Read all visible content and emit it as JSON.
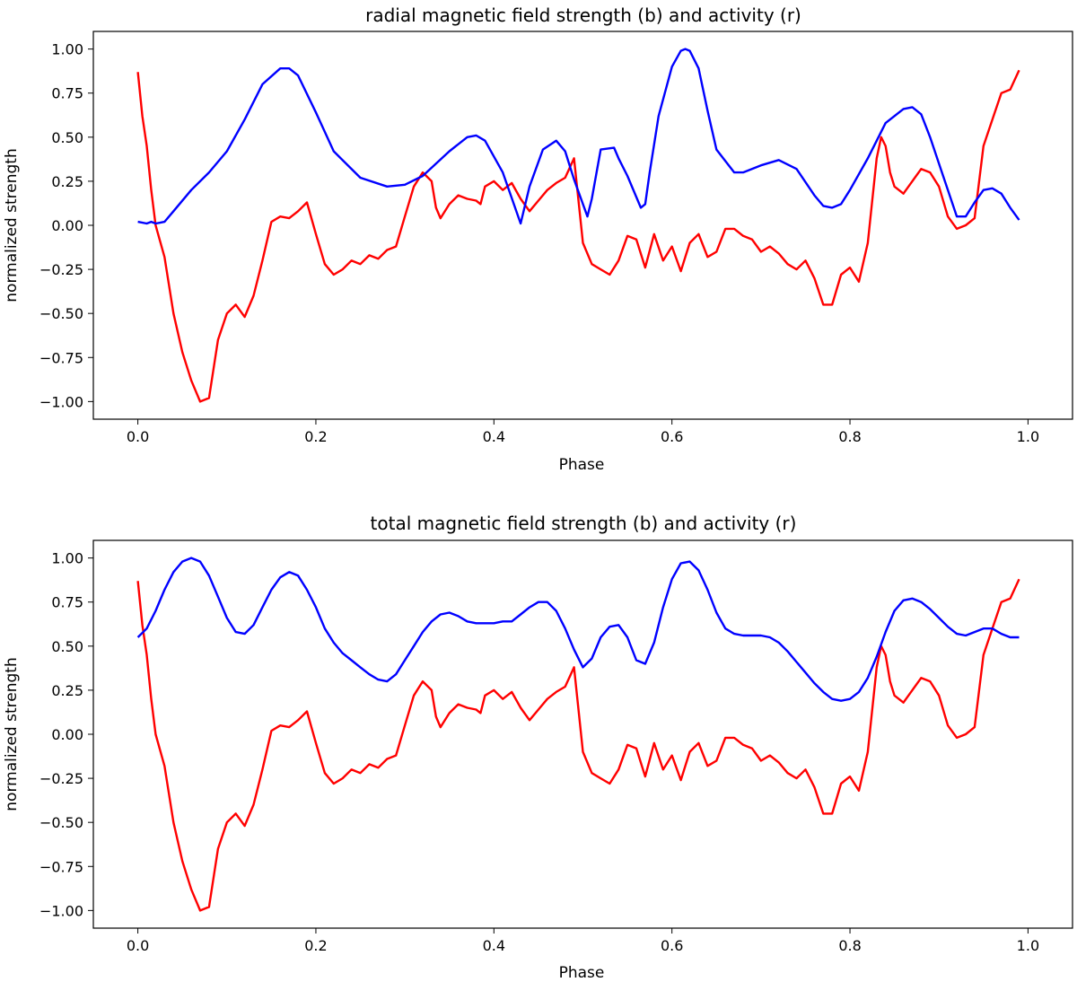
{
  "colors": {
    "magnetic": "#0000ff",
    "activity": "#ff0000",
    "axes": "#000000"
  },
  "chart_data": [
    {
      "type": "line",
      "title": "radial magnetic field strength (b) and activity (r)",
      "xlabel": "Phase",
      "ylabel": "normalized strength",
      "xlim": [
        -0.05,
        1.05
      ],
      "ylim": [
        -1.1,
        1.1
      ],
      "xticks": [
        0.0,
        0.2,
        0.4,
        0.6,
        0.8,
        1.0
      ],
      "xtick_labels": [
        "0.0",
        "0.2",
        "0.4",
        "0.6",
        "0.8",
        "1.0"
      ],
      "yticks": [
        1.0,
        0.75,
        0.5,
        0.25,
        0.0,
        -0.25,
        -0.5,
        -0.75,
        -1.0
      ],
      "ytick_labels": [
        "1.00",
        "0.75",
        "0.50",
        "0.25",
        "0.00",
        "−0.25",
        "−0.50",
        "−0.75",
        "−1.00"
      ],
      "series": [
        {
          "name": "magnetic field (b)",
          "color": "#0000ff",
          "x": [
            0.0,
            0.01,
            0.015,
            0.02,
            0.025,
            0.03,
            0.04,
            0.06,
            0.08,
            0.1,
            0.12,
            0.14,
            0.16,
            0.17,
            0.18,
            0.2,
            0.22,
            0.25,
            0.28,
            0.3,
            0.32,
            0.35,
            0.37,
            0.38,
            0.39,
            0.41,
            0.43,
            0.44,
            0.455,
            0.47,
            0.48,
            0.49,
            0.505,
            0.51,
            0.52,
            0.535,
            0.54,
            0.55,
            0.565,
            0.57,
            0.575,
            0.585,
            0.6,
            0.61,
            0.615,
            0.62,
            0.63,
            0.64,
            0.65,
            0.67,
            0.68,
            0.7,
            0.72,
            0.74,
            0.76,
            0.77,
            0.78,
            0.79,
            0.8,
            0.82,
            0.84,
            0.86,
            0.87,
            0.88,
            0.89,
            0.9,
            0.92,
            0.93,
            0.94,
            0.95,
            0.96,
            0.97,
            0.98,
            0.99
          ],
          "y": [
            0.02,
            0.01,
            0.02,
            0.01,
            0.015,
            0.02,
            0.08,
            0.2,
            0.3,
            0.42,
            0.6,
            0.8,
            0.89,
            0.89,
            0.85,
            0.64,
            0.42,
            0.27,
            0.22,
            0.23,
            0.28,
            0.42,
            0.5,
            0.51,
            0.48,
            0.3,
            0.01,
            0.22,
            0.43,
            0.48,
            0.42,
            0.26,
            0.05,
            0.15,
            0.43,
            0.44,
            0.38,
            0.28,
            0.1,
            0.12,
            0.3,
            0.62,
            0.9,
            0.99,
            1.0,
            0.99,
            0.89,
            0.65,
            0.43,
            0.3,
            0.3,
            0.34,
            0.37,
            0.32,
            0.17,
            0.11,
            0.1,
            0.12,
            0.2,
            0.38,
            0.58,
            0.66,
            0.67,
            0.63,
            0.5,
            0.35,
            0.05,
            0.05,
            0.13,
            0.2,
            0.21,
            0.18,
            0.1,
            0.03
          ]
        },
        {
          "name": "activity (r)",
          "color": "#ff0000",
          "x": [
            0.0,
            0.005,
            0.01,
            0.015,
            0.02,
            0.03,
            0.04,
            0.05,
            0.06,
            0.07,
            0.08,
            0.09,
            0.1,
            0.11,
            0.12,
            0.13,
            0.14,
            0.15,
            0.16,
            0.17,
            0.18,
            0.19,
            0.2,
            0.21,
            0.22,
            0.23,
            0.24,
            0.25,
            0.26,
            0.27,
            0.28,
            0.29,
            0.3,
            0.31,
            0.32,
            0.33,
            0.335,
            0.34,
            0.35,
            0.36,
            0.37,
            0.38,
            0.385,
            0.39,
            0.4,
            0.41,
            0.42,
            0.43,
            0.44,
            0.45,
            0.46,
            0.47,
            0.48,
            0.49,
            0.5,
            0.51,
            0.52,
            0.53,
            0.54,
            0.55,
            0.56,
            0.57,
            0.58,
            0.59,
            0.6,
            0.61,
            0.62,
            0.63,
            0.64,
            0.65,
            0.66,
            0.67,
            0.68,
            0.69,
            0.7,
            0.71,
            0.72,
            0.73,
            0.74,
            0.75,
            0.76,
            0.77,
            0.78,
            0.79,
            0.8,
            0.81,
            0.82,
            0.83,
            0.835,
            0.84,
            0.845,
            0.85,
            0.86,
            0.87,
            0.88,
            0.89,
            0.9,
            0.91,
            0.92,
            0.93,
            0.94,
            0.95,
            0.96,
            0.97,
            0.98,
            0.99
          ],
          "y": [
            0.87,
            0.62,
            0.45,
            0.2,
            0.0,
            -0.18,
            -0.5,
            -0.72,
            -0.88,
            -1.0,
            -0.98,
            -0.65,
            -0.5,
            -0.45,
            -0.52,
            -0.4,
            -0.2,
            0.02,
            0.05,
            0.04,
            0.08,
            0.13,
            -0.05,
            -0.22,
            -0.28,
            -0.25,
            -0.2,
            -0.22,
            -0.17,
            -0.19,
            -0.14,
            -0.12,
            0.05,
            0.22,
            0.3,
            0.25,
            0.1,
            0.04,
            0.12,
            0.17,
            0.15,
            0.14,
            0.12,
            0.22,
            0.25,
            0.2,
            0.24,
            0.15,
            0.08,
            0.14,
            0.2,
            0.24,
            0.27,
            0.38,
            -0.1,
            -0.22,
            -0.25,
            -0.28,
            -0.2,
            -0.06,
            -0.08,
            -0.24,
            -0.05,
            -0.2,
            -0.12,
            -0.26,
            -0.1,
            -0.05,
            -0.18,
            -0.15,
            -0.02,
            -0.02,
            -0.06,
            -0.08,
            -0.15,
            -0.12,
            -0.16,
            -0.22,
            -0.25,
            -0.2,
            -0.3,
            -0.45,
            -0.45,
            -0.28,
            -0.24,
            -0.32,
            -0.1,
            0.38,
            0.5,
            0.45,
            0.3,
            0.22,
            0.18,
            0.25,
            0.32,
            0.3,
            0.22,
            0.05,
            -0.02,
            0.0,
            0.04,
            0.45,
            0.6,
            0.75,
            0.77,
            0.88
          ]
        }
      ]
    },
    {
      "type": "line",
      "title": "total magnetic field strength (b) and activity (r)",
      "xlabel": "Phase",
      "ylabel": "normalized strength",
      "xlim": [
        -0.05,
        1.05
      ],
      "ylim": [
        -1.1,
        1.1
      ],
      "xticks": [
        0.0,
        0.2,
        0.4,
        0.6,
        0.8,
        1.0
      ],
      "xtick_labels": [
        "0.0",
        "0.2",
        "0.4",
        "0.6",
        "0.8",
        "1.0"
      ],
      "yticks": [
        1.0,
        0.75,
        0.5,
        0.25,
        0.0,
        -0.25,
        -0.5,
        -0.75,
        -1.0
      ],
      "ytick_labels": [
        "1.00",
        "0.75",
        "0.50",
        "0.25",
        "0.00",
        "−0.25",
        "−0.50",
        "−0.75",
        "−1.00"
      ],
      "series": [
        {
          "name": "magnetic field (b)",
          "color": "#0000ff",
          "x": [
            0.0,
            0.01,
            0.02,
            0.03,
            0.04,
            0.05,
            0.06,
            0.07,
            0.08,
            0.09,
            0.1,
            0.11,
            0.12,
            0.13,
            0.14,
            0.15,
            0.16,
            0.17,
            0.18,
            0.19,
            0.2,
            0.21,
            0.22,
            0.23,
            0.24,
            0.25,
            0.26,
            0.27,
            0.28,
            0.29,
            0.3,
            0.31,
            0.32,
            0.33,
            0.34,
            0.35,
            0.36,
            0.37,
            0.38,
            0.39,
            0.4,
            0.41,
            0.42,
            0.43,
            0.44,
            0.45,
            0.46,
            0.47,
            0.48,
            0.49,
            0.5,
            0.51,
            0.52,
            0.53,
            0.54,
            0.55,
            0.56,
            0.57,
            0.58,
            0.59,
            0.6,
            0.61,
            0.62,
            0.63,
            0.64,
            0.65,
            0.66,
            0.67,
            0.68,
            0.69,
            0.7,
            0.71,
            0.72,
            0.73,
            0.74,
            0.75,
            0.76,
            0.77,
            0.78,
            0.79,
            0.8,
            0.81,
            0.82,
            0.83,
            0.84,
            0.85,
            0.86,
            0.87,
            0.88,
            0.89,
            0.9,
            0.91,
            0.92,
            0.93,
            0.94,
            0.95,
            0.96,
            0.97,
            0.98,
            0.99
          ],
          "y": [
            0.55,
            0.6,
            0.7,
            0.82,
            0.92,
            0.98,
            1.0,
            0.98,
            0.9,
            0.78,
            0.66,
            0.58,
            0.57,
            0.62,
            0.72,
            0.82,
            0.89,
            0.92,
            0.9,
            0.82,
            0.72,
            0.6,
            0.52,
            0.46,
            0.42,
            0.38,
            0.34,
            0.31,
            0.3,
            0.34,
            0.42,
            0.5,
            0.58,
            0.64,
            0.68,
            0.69,
            0.67,
            0.64,
            0.63,
            0.63,
            0.63,
            0.64,
            0.64,
            0.68,
            0.72,
            0.75,
            0.75,
            0.7,
            0.6,
            0.48,
            0.38,
            0.43,
            0.55,
            0.61,
            0.62,
            0.55,
            0.42,
            0.4,
            0.52,
            0.72,
            0.88,
            0.97,
            0.98,
            0.93,
            0.82,
            0.69,
            0.6,
            0.57,
            0.56,
            0.56,
            0.56,
            0.55,
            0.52,
            0.47,
            0.41,
            0.35,
            0.29,
            0.24,
            0.2,
            0.19,
            0.2,
            0.24,
            0.32,
            0.44,
            0.58,
            0.7,
            0.76,
            0.77,
            0.75,
            0.71,
            0.66,
            0.61,
            0.57,
            0.56,
            0.58,
            0.6,
            0.6,
            0.57,
            0.55,
            0.55
          ]
        },
        {
          "name": "activity (r)",
          "color": "#ff0000",
          "x": [
            0.0,
            0.005,
            0.01,
            0.015,
            0.02,
            0.03,
            0.04,
            0.05,
            0.06,
            0.07,
            0.08,
            0.09,
            0.1,
            0.11,
            0.12,
            0.13,
            0.14,
            0.15,
            0.16,
            0.17,
            0.18,
            0.19,
            0.2,
            0.21,
            0.22,
            0.23,
            0.24,
            0.25,
            0.26,
            0.27,
            0.28,
            0.29,
            0.3,
            0.31,
            0.32,
            0.33,
            0.335,
            0.34,
            0.35,
            0.36,
            0.37,
            0.38,
            0.385,
            0.39,
            0.4,
            0.41,
            0.42,
            0.43,
            0.44,
            0.45,
            0.46,
            0.47,
            0.48,
            0.49,
            0.5,
            0.51,
            0.52,
            0.53,
            0.54,
            0.55,
            0.56,
            0.57,
            0.58,
            0.59,
            0.6,
            0.61,
            0.62,
            0.63,
            0.64,
            0.65,
            0.66,
            0.67,
            0.68,
            0.69,
            0.7,
            0.71,
            0.72,
            0.73,
            0.74,
            0.75,
            0.76,
            0.77,
            0.78,
            0.79,
            0.8,
            0.81,
            0.82,
            0.83,
            0.835,
            0.84,
            0.845,
            0.85,
            0.86,
            0.87,
            0.88,
            0.89,
            0.9,
            0.91,
            0.92,
            0.93,
            0.94,
            0.95,
            0.96,
            0.97,
            0.98,
            0.99
          ],
          "y": [
            0.87,
            0.62,
            0.45,
            0.2,
            0.0,
            -0.18,
            -0.5,
            -0.72,
            -0.88,
            -1.0,
            -0.98,
            -0.65,
            -0.5,
            -0.45,
            -0.52,
            -0.4,
            -0.2,
            0.02,
            0.05,
            0.04,
            0.08,
            0.13,
            -0.05,
            -0.22,
            -0.28,
            -0.25,
            -0.2,
            -0.22,
            -0.17,
            -0.19,
            -0.14,
            -0.12,
            0.05,
            0.22,
            0.3,
            0.25,
            0.1,
            0.04,
            0.12,
            0.17,
            0.15,
            0.14,
            0.12,
            0.22,
            0.25,
            0.2,
            0.24,
            0.15,
            0.08,
            0.14,
            0.2,
            0.24,
            0.27,
            0.38,
            -0.1,
            -0.22,
            -0.25,
            -0.28,
            -0.2,
            -0.06,
            -0.08,
            -0.24,
            -0.05,
            -0.2,
            -0.12,
            -0.26,
            -0.1,
            -0.05,
            -0.18,
            -0.15,
            -0.02,
            -0.02,
            -0.06,
            -0.08,
            -0.15,
            -0.12,
            -0.16,
            -0.22,
            -0.25,
            -0.2,
            -0.3,
            -0.45,
            -0.45,
            -0.28,
            -0.24,
            -0.32,
            -0.1,
            0.38,
            0.5,
            0.45,
            0.3,
            0.22,
            0.18,
            0.25,
            0.32,
            0.3,
            0.22,
            0.05,
            -0.02,
            0.0,
            0.04,
            0.45,
            0.6,
            0.75,
            0.77,
            0.88
          ]
        }
      ]
    }
  ]
}
